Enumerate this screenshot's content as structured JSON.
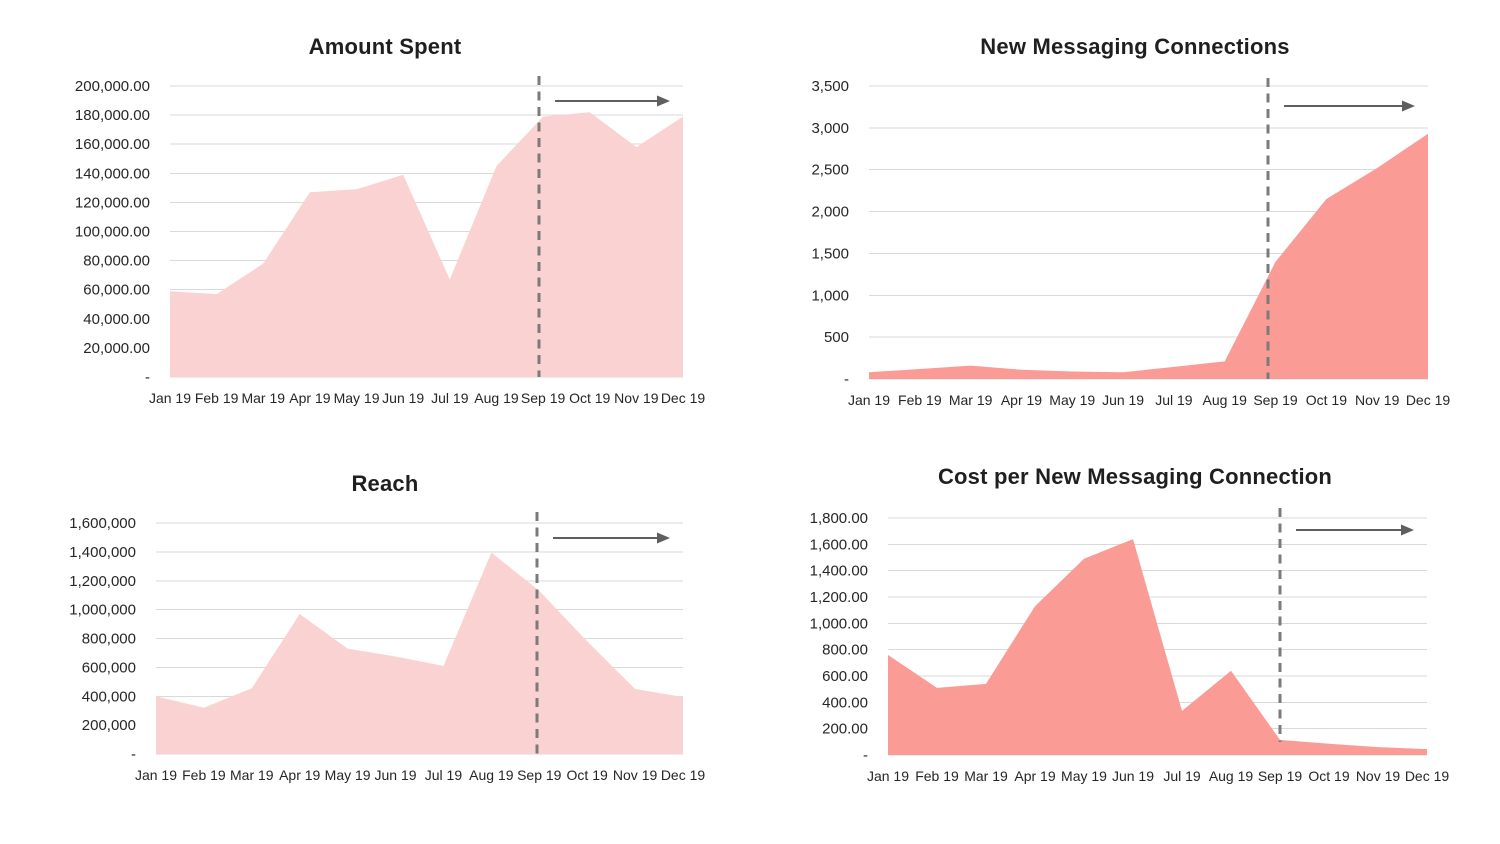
{
  "page": {
    "background": "#ffffff",
    "text_color": "#262626",
    "gridline_color": "#d9d9d9",
    "dashed_line_color": "#7b7b7b",
    "arrow_color": "#5f5f5f"
  },
  "chart_data": [
    {
      "type": "area",
      "title": "Amount Spent",
      "categories": [
        "Jan 19",
        "Feb 19",
        "Mar 19",
        "Apr 19",
        "May 19",
        "Jun 19",
        "Jul 19",
        "Aug 19",
        "Sep 19",
        "Oct 19",
        "Nov 19",
        "Dec 19"
      ],
      "values": [
        59000,
        57000,
        78000,
        127000,
        129000,
        139000,
        67000,
        145000,
        179000,
        182000,
        158000,
        179000
      ],
      "ylim": [
        0,
        200000
      ],
      "ytick_labels": [
        "200,000.00",
        "180,000.00",
        "160,000.00",
        "140,000.00",
        "120,000.00",
        "100,000.00",
        "80,000.00",
        "60,000.00",
        "40,000.00",
        "20,000.00",
        "-"
      ],
      "area_color": "#fad2d2",
      "grid": "horizontal",
      "legend": "none",
      "annotations": {
        "dashed_vline_at": "Sep 19",
        "trend_arrow": "rightward-after-Sep-19"
      }
    },
    {
      "type": "area",
      "title": "New Messaging Connections",
      "categories": [
        "Jan 19",
        "Feb 19",
        "Mar 19",
        "Apr 19",
        "May 19",
        "Jun 19",
        "Jul 19",
        "Aug 19",
        "Sep 19",
        "Oct 19",
        "Nov 19",
        "Dec 19"
      ],
      "values": [
        80,
        120,
        160,
        110,
        90,
        80,
        145,
        210,
        1400,
        2150,
        2520,
        2930
      ],
      "ylim": [
        0,
        3500
      ],
      "ytick_labels": [
        "3,500",
        "3,000",
        "2,500",
        "2,000",
        "1,500",
        "1,000",
        "500",
        "-"
      ],
      "area_color": "#fb9b95",
      "grid": "horizontal",
      "legend": "none",
      "annotations": {
        "dashed_vline_at": "Sep 19",
        "trend_arrow": "rightward-after-Sep-19"
      }
    },
    {
      "type": "area",
      "title": "Reach",
      "categories": [
        "Jan 19",
        "Feb 19",
        "Mar 19",
        "Apr 19",
        "May 19",
        "Jun 19",
        "Jul 19",
        "Aug 19",
        "Sep 19",
        "Oct 19",
        "Nov 19",
        "Dec 19"
      ],
      "values": [
        400000,
        320000,
        455000,
        970000,
        730000,
        675000,
        610000,
        1395000,
        1130000,
        780000,
        450000,
        395000
      ],
      "ylim": [
        0,
        1600000
      ],
      "ytick_labels": [
        "1,600,000",
        "1,400,000",
        "1,200,000",
        "1,000,000",
        "800,000",
        "600,000",
        "400,000",
        "200,000",
        "-"
      ],
      "area_color": "#fad2d2",
      "grid": "horizontal",
      "legend": "none",
      "annotations": {
        "dashed_vline_at": "Sep 19",
        "trend_arrow": "rightward-after-Sep-19"
      }
    },
    {
      "type": "area",
      "title": "Cost per New Messaging Connection",
      "categories": [
        "Jan 19",
        "Feb 19",
        "Mar 19",
        "Apr 19",
        "May 19",
        "Jun 19",
        "Jul 19",
        "Aug 19",
        "Sep 19",
        "Oct 19",
        "Nov 19",
        "Dec 19"
      ],
      "values": [
        760,
        510,
        540,
        1130,
        1490,
        1640,
        335,
        640,
        115,
        85,
        60,
        45
      ],
      "ylim": [
        0,
        1800
      ],
      "ytick_labels": [
        "1,800.00",
        "1,600.00",
        "1,400.00",
        "1,200.00",
        "1,000.00",
        "800.00",
        "600.00",
        "400.00",
        "200.00",
        "-"
      ],
      "area_color": "#fb9b95",
      "grid": "horizontal",
      "legend": "none",
      "annotations": {
        "dashed_vline_at": "Sep 19",
        "trend_arrow": "rightward-after-Sep-19"
      }
    }
  ]
}
